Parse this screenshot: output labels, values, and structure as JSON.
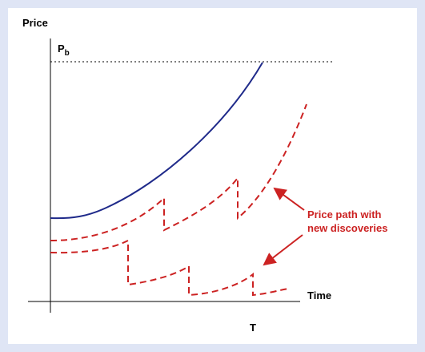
{
  "labels": {
    "y_axis": "Price",
    "price_level": "P",
    "price_level_sub": "b",
    "x_axis": "Time",
    "x_tick": "T"
  },
  "annotation": [
    "Price path with",
    "new discoveries"
  ]
}
